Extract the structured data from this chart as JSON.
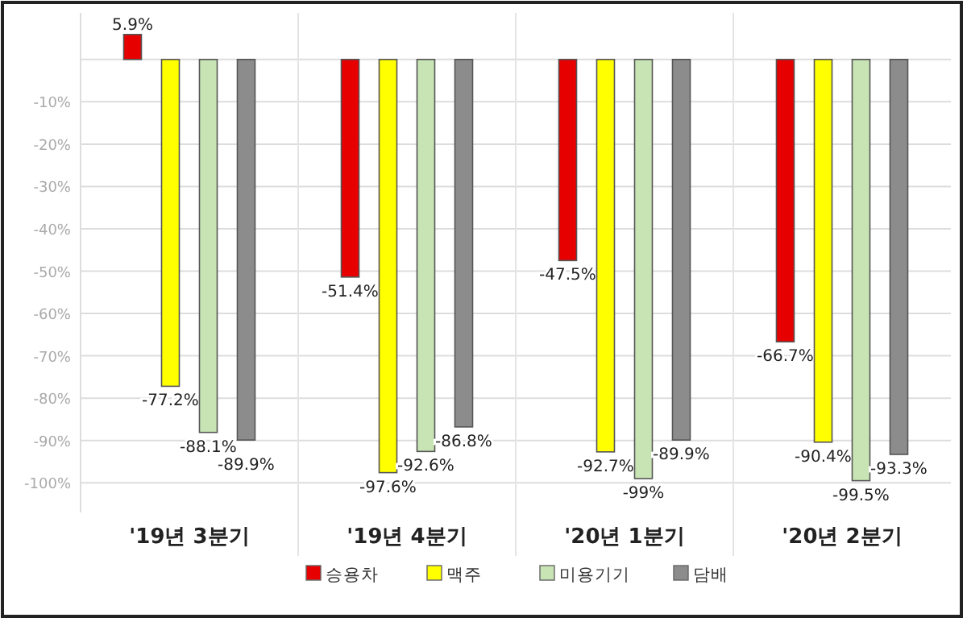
{
  "chart_data": {
    "type": "bar",
    "categories": [
      "'19년 3분기",
      "'19년 4분기",
      "'20년 1분기",
      "'20년 2분기"
    ],
    "series": [
      {
        "name": "승용차",
        "color": "#e60000",
        "values": [
          5.9,
          -51.4,
          -47.5,
          -66.7
        ],
        "value_labels": [
          "5.9%",
          "-51.4%",
          "-47.5%",
          "-66.7%"
        ]
      },
      {
        "name": "맥주",
        "color": "#ffff00",
        "values": [
          -77.2,
          -97.6,
          -92.7,
          -90.4
        ],
        "value_labels": [
          "-77.2%",
          "-97.6%",
          "-92.7%",
          "-90.4%"
        ]
      },
      {
        "name": "미용기기",
        "color": "#c8e4b4",
        "values": [
          -88.1,
          -92.6,
          -99,
          -99.5
        ],
        "value_labels": [
          "-88.1%",
          "-92.6%",
          "-99%",
          "-99.5%"
        ]
      },
      {
        "name": "담배",
        "color": "#8c8c8c",
        "values": [
          -89.9,
          -86.8,
          -89.9,
          -93.3
        ],
        "value_labels": [
          "-89.9%",
          "-86.8%",
          "-89.9%",
          "-93.3%"
        ]
      }
    ],
    "ylim": [
      -107,
      11
    ],
    "yticks": [
      {
        "value": 0,
        "label": null
      },
      {
        "value": -10,
        "label": "-10%"
      },
      {
        "value": -20,
        "label": "-20%"
      },
      {
        "value": -30,
        "label": "-30%"
      },
      {
        "value": -40,
        "label": "-40%"
      },
      {
        "value": -50,
        "label": "-50%"
      },
      {
        "value": -60,
        "label": "-60%"
      },
      {
        "value": -70,
        "label": "-70%"
      },
      {
        "value": -80,
        "label": "-80%"
      },
      {
        "value": -90,
        "label": "-90%"
      },
      {
        "value": -100,
        "label": "-100%"
      }
    ],
    "grid": "y",
    "legend": "bottom"
  }
}
